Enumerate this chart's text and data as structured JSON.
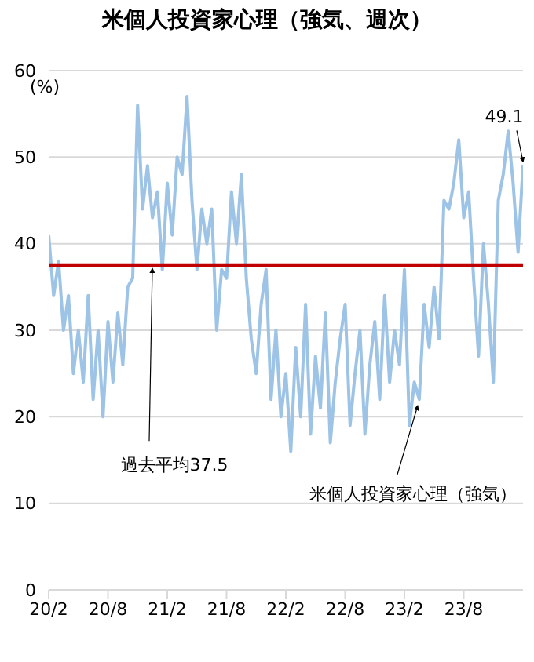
{
  "chart_data": {
    "type": "line",
    "title": "米個人投資家心理（強気、週次）",
    "ylabel": "(%)",
    "categories": [
      "20/2",
      null,
      null,
      null,
      null,
      null,
      null,
      null,
      null,
      null,
      null,
      null,
      "20/8",
      null,
      null,
      null,
      null,
      null,
      null,
      null,
      null,
      null,
      null,
      null,
      "21/2",
      null,
      null,
      null,
      null,
      null,
      null,
      null,
      null,
      null,
      null,
      null,
      "21/8",
      null,
      null,
      null,
      null,
      null,
      null,
      null,
      null,
      null,
      null,
      null,
      "22/2",
      null,
      null,
      null,
      null,
      null,
      null,
      null,
      null,
      null,
      null,
      null,
      "22/8",
      null,
      null,
      null,
      null,
      null,
      null,
      null,
      null,
      null,
      null,
      null,
      "23/2",
      null,
      null,
      null,
      null,
      null,
      null,
      null,
      null,
      null,
      null,
      null,
      "23/8",
      null,
      null,
      null,
      null,
      null,
      null,
      null,
      null,
      null,
      null,
      null,
      null
    ],
    "series": [
      {
        "name": "米個人投資家心理（強気）",
        "color": "#9dc3e6",
        "values": [
          41,
          34,
          38,
          30,
          34,
          25,
          30,
          24,
          34,
          22,
          30,
          20,
          31,
          24,
          32,
          26,
          35,
          36,
          56,
          44,
          49,
          43,
          46,
          37,
          47,
          41,
          50,
          48,
          57,
          45,
          37,
          44,
          40,
          44,
          30,
          37,
          36,
          46,
          40,
          48,
          36,
          29,
          25,
          33,
          37,
          22,
          30,
          20,
          25,
          16,
          28,
          20,
          33,
          18,
          27,
          21,
          32,
          17,
          24,
          29,
          33,
          19,
          25,
          30,
          18,
          26,
          31,
          22,
          34,
          24,
          30,
          26,
          37,
          19,
          24,
          22,
          33,
          28,
          35,
          29,
          45,
          44,
          47,
          52,
          43,
          46,
          36,
          27,
          40,
          33,
          24,
          45,
          48,
          53,
          47,
          39,
          49.1
        ],
        "value_labels": [
          null,
          null,
          null,
          null,
          null,
          null,
          null,
          null,
          null,
          null,
          null,
          null,
          null,
          null,
          null,
          null,
          null,
          null,
          null,
          null,
          null,
          null,
          null,
          null,
          null,
          null,
          null,
          null,
          null,
          null,
          null,
          null,
          null,
          null,
          null,
          null,
          null,
          null,
          null,
          null,
          null,
          null,
          null,
          null,
          null,
          null,
          null,
          null,
          null,
          null,
          null,
          null,
          null,
          null,
          null,
          null,
          null,
          null,
          null,
          null,
          null,
          null,
          null,
          null,
          null,
          null,
          null,
          null,
          null,
          null,
          null,
          null,
          null,
          null,
          null,
          null,
          null,
          null,
          null,
          null,
          null,
          null,
          null,
          null,
          null,
          null,
          null,
          null,
          null,
          null,
          null,
          null,
          null,
          null,
          null,
          null,
          "49.1"
        ]
      }
    ],
    "ylim": [
      0,
      60
    ],
    "yticks": [
      0,
      10,
      20,
      30,
      40,
      50,
      60
    ],
    "grid": "y",
    "legend": false,
    "line_style": "solid",
    "marker": "none",
    "ref_lines": [
      {
        "axis": "y",
        "value": 37.5,
        "label": "過去平均37.5",
        "color": "#c00000"
      }
    ]
  }
}
